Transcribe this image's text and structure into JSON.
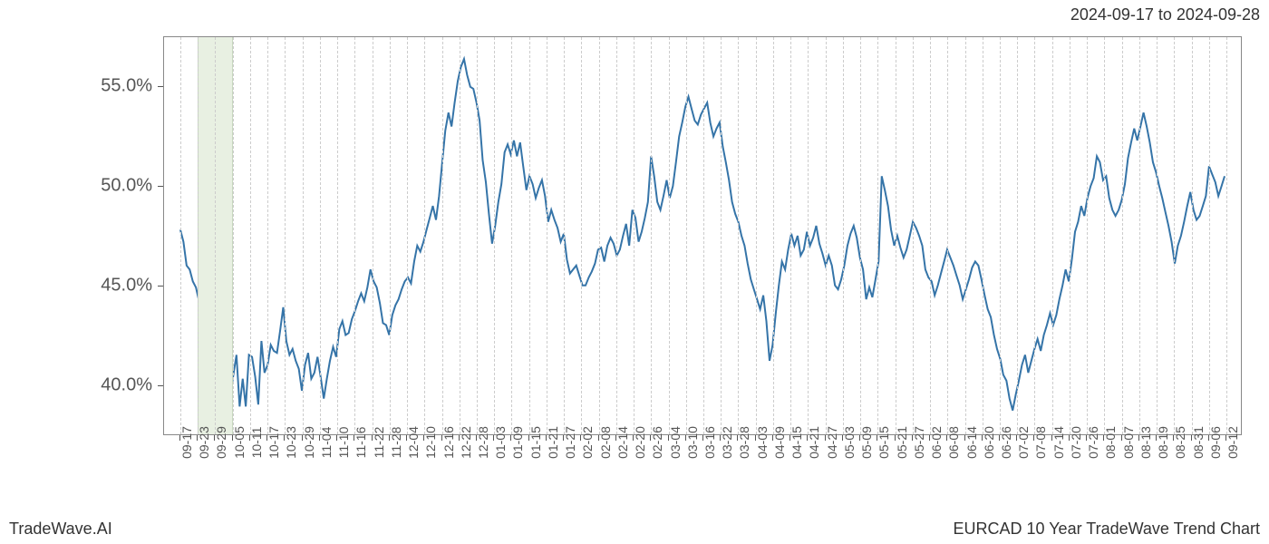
{
  "header": {
    "date_range": "2024-09-17 to 2024-09-28"
  },
  "footer": {
    "brand": "TradeWave.AI",
    "chart_title": "EURCAD 10 Year TradeWave Trend Chart"
  },
  "chart": {
    "type": "line",
    "background_color": "#ffffff",
    "border_color": "#888888",
    "grid_color": "#cccccc",
    "highlight_band": {
      "start_idx": 1,
      "end_idx": 3,
      "fill": "#e8f0e2",
      "border": "#c8d8c0"
    },
    "line": {
      "color": "#3574a8",
      "width": 2
    },
    "y_axis": {
      "min": 37.5,
      "max": 57.5,
      "ticks": [
        40.0,
        45.0,
        50.0,
        55.0
      ],
      "tick_labels": [
        "40.0%",
        "45.0%",
        "50.0%",
        "55.0%"
      ],
      "label_fontsize": 20,
      "label_color": "#555555"
    },
    "x_axis": {
      "labels": [
        "09-17",
        "09-23",
        "09-29",
        "10-05",
        "10-11",
        "10-17",
        "10-23",
        "10-29",
        "11-04",
        "11-10",
        "11-16",
        "11-22",
        "11-28",
        "12-04",
        "12-10",
        "12-16",
        "12-22",
        "12-28",
        "01-03",
        "01-09",
        "01-15",
        "01-21",
        "01-27",
        "02-02",
        "02-08",
        "02-14",
        "02-20",
        "02-26",
        "03-04",
        "03-10",
        "03-16",
        "03-22",
        "03-28",
        "04-03",
        "04-09",
        "04-15",
        "04-21",
        "04-27",
        "05-03",
        "05-09",
        "05-15",
        "05-21",
        "05-27",
        "06-02",
        "06-08",
        "06-14",
        "06-20",
        "06-26",
        "07-02",
        "07-08",
        "07-14",
        "07-20",
        "07-26",
        "08-01",
        "08-07",
        "08-13",
        "08-19",
        "08-25",
        "08-31",
        "09-06",
        "09-12"
      ],
      "label_fontsize": 14,
      "label_color": "#555555",
      "rotation": -90
    },
    "series": {
      "values": [
        47.8,
        47.2,
        46.0,
        45.8,
        45.2,
        44.9,
        44.2,
        43.8,
        43.0,
        42.7,
        43.5,
        43.0,
        43.2,
        42.4,
        41.3,
        40.1,
        39.4,
        40.5,
        41.5,
        38.9,
        40.3,
        38.9,
        41.5,
        41.4,
        40.4,
        39.0,
        42.2,
        40.6,
        41.0,
        42.0,
        41.7,
        41.6,
        42.7,
        43.9,
        42.2,
        41.5,
        41.8,
        41.2,
        40.8,
        39.7,
        41.0,
        41.6,
        40.3,
        40.6,
        41.4,
        40.4,
        39.3,
        40.3,
        41.2,
        41.9,
        41.4,
        42.8,
        43.2,
        42.5,
        42.6,
        43.3,
        43.7,
        44.2,
        44.6,
        44.2,
        44.9,
        45.8,
        45.2,
        44.9,
        44.1,
        43.1,
        43.0,
        42.5,
        43.5,
        44.0,
        44.3,
        44.8,
        45.2,
        45.4,
        45.1,
        46.2,
        47.0,
        46.7,
        47.2,
        47.8,
        48.4,
        49.0,
        48.3,
        49.5,
        51.2,
        52.8,
        53.7,
        53.0,
        54.2,
        55.3,
        56.0,
        56.4,
        55.6,
        55.0,
        54.9,
        54.2,
        53.3,
        51.3,
        50.2,
        48.6,
        47.1,
        48.0,
        49.2,
        50.1,
        51.7,
        52.1,
        51.6,
        52.3,
        51.5,
        52.2,
        51.0,
        49.8,
        50.5,
        50.1,
        49.4,
        49.9,
        50.3,
        49.5,
        48.2,
        48.8,
        48.3,
        47.9,
        47.2,
        47.6,
        46.3,
        45.6,
        45.8,
        46.0,
        45.5,
        45.0,
        45.0,
        45.4,
        45.7,
        46.1,
        46.8,
        46.9,
        46.2,
        47.0,
        47.4,
        47.1,
        46.5,
        46.8,
        47.5,
        48.1,
        47.0,
        48.8,
        48.4,
        47.2,
        47.7,
        48.4,
        49.2,
        51.5,
        50.5,
        49.2,
        48.8,
        49.5,
        50.3,
        49.4,
        50.0,
        51.2,
        52.5,
        53.2,
        54.0,
        54.5,
        53.9,
        53.3,
        53.1,
        53.6,
        53.9,
        54.2,
        53.2,
        52.5,
        52.9,
        53.2,
        52.0,
        51.2,
        50.3,
        49.2,
        48.6,
        48.2,
        47.5,
        47.0,
        46.1,
        45.3,
        44.8,
        44.3,
        43.8,
        44.5,
        43.2,
        41.2,
        42.0,
        43.6,
        45.0,
        46.2,
        45.8,
        46.8,
        47.6,
        47.0,
        47.5,
        46.5,
        46.8,
        47.7,
        47.0,
        47.4,
        48.0,
        47.1,
        46.6,
        46.0,
        46.5,
        46.0,
        45.0,
        44.8,
        45.3,
        46.0,
        47.0,
        47.6,
        48.0,
        47.4,
        46.4,
        45.8,
        44.3,
        44.9,
        44.4,
        45.3,
        46.2,
        50.5,
        49.8,
        49.0,
        47.8,
        47.0,
        47.5,
        46.9,
        46.4,
        46.8,
        47.5,
        48.2,
        47.9,
        47.5,
        47.0,
        45.8,
        45.4,
        45.2,
        44.5,
        45.0,
        45.6,
        46.2,
        46.8,
        46.4,
        46.0,
        45.5,
        45.0,
        44.3,
        44.8,
        45.3,
        45.9,
        46.2,
        46.0,
        45.3,
        44.5,
        43.8,
        43.4,
        42.5,
        41.8,
        41.3,
        40.5,
        40.2,
        39.3,
        38.7,
        39.5,
        40.2,
        41.0,
        41.5,
        40.6,
        41.2,
        41.8,
        42.3,
        41.7,
        42.5,
        43.0,
        43.6,
        43.0,
        43.5,
        44.3,
        45.0,
        45.8,
        45.2,
        46.3,
        47.7,
        48.2,
        49.0,
        48.5,
        49.4,
        50.0,
        50.4,
        51.5,
        51.2,
        50.3,
        50.5,
        49.4,
        48.8,
        48.5,
        48.8,
        49.3,
        50.1,
        51.4,
        52.2,
        52.9,
        52.3,
        53.0,
        53.7,
        53.0,
        52.2,
        51.2,
        50.7,
        50.0,
        49.4,
        48.7,
        48.0,
        47.2,
        46.1,
        47.0,
        47.5,
        48.2,
        49.0,
        49.7,
        48.8,
        48.3,
        48.5,
        49.0,
        49.5,
        51.0,
        50.6,
        50.2,
        49.5,
        50.0,
        50.5
      ]
    }
  }
}
